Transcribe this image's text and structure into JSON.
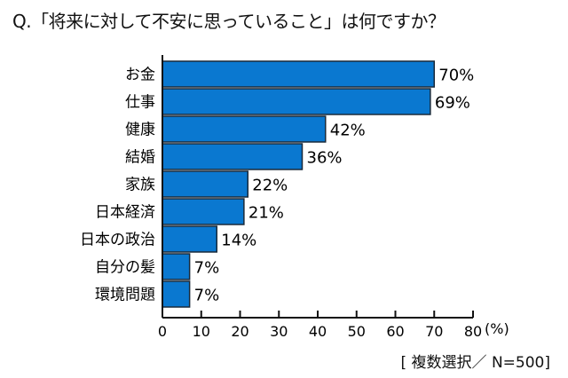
{
  "chart_data": {
    "type": "bar",
    "orientation": "horizontal",
    "title": "Q.「将来に対して不安に思っていること」は何ですか？",
    "categories": [
      "お金",
      "仕事",
      "健康",
      "結婚",
      "家族",
      "日本経済",
      "日本の政治",
      "自分の髪",
      "環境問題"
    ],
    "values": [
      70,
      69,
      42,
      36,
      22,
      21,
      14,
      7,
      7
    ],
    "data_labels": [
      "70%",
      "69%",
      "42%",
      "36%",
      "22%",
      "21%",
      "14%",
      "7%",
      "7%"
    ],
    "xlim": [
      0,
      80
    ],
    "xticks": [
      "0",
      "10",
      "20",
      "30",
      "40",
      "50",
      "60",
      "70",
      "80"
    ],
    "xunit": "(%)",
    "note": "[ 複数選択／ N=500]",
    "grid": false,
    "bar_color": "#0a78d0",
    "bar_edge_color": "#1a2a3a"
  }
}
